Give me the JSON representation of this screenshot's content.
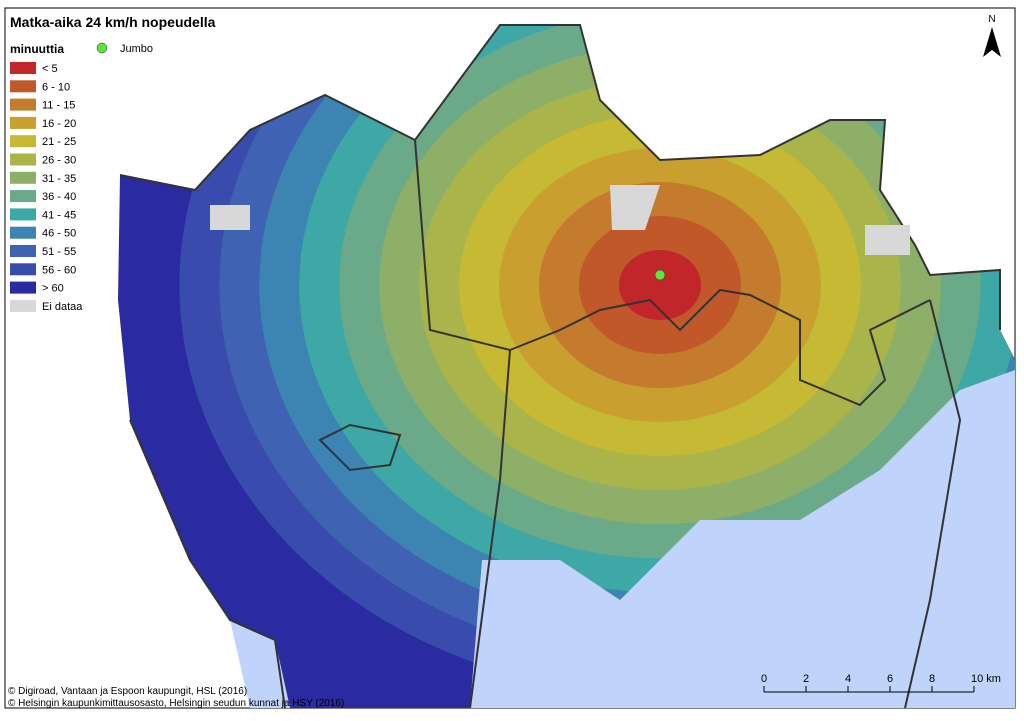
{
  "header": {
    "title": "Matka-aika 24 km/h nopeudella"
  },
  "legend": {
    "title": "minuuttia",
    "items": [
      {
        "label": "< 5",
        "color": "#c0262a"
      },
      {
        "label": "6 - 10",
        "color": "#c0582a"
      },
      {
        "label": "11 - 15",
        "color": "#c47b2d"
      },
      {
        "label": "16 - 20",
        "color": "#c9a02f"
      },
      {
        "label": "21 - 25",
        "color": "#c6b934"
      },
      {
        "label": "26 - 30",
        "color": "#a9b44b"
      },
      {
        "label": "31 - 35",
        "color": "#8daf68"
      },
      {
        "label": "36 - 40",
        "color": "#6aaa88"
      },
      {
        "label": "41 - 45",
        "color": "#3ea8a7"
      },
      {
        "label": "46 - 50",
        "color": "#3c84b1"
      },
      {
        "label": "51 - 55",
        "color": "#3f63b2"
      },
      {
        "label": "56 - 60",
        "color": "#3a4bae"
      },
      {
        "label": "> 60",
        "color": "#2a2ba0"
      },
      {
        "label": "Ei dataa",
        "color": "#d8d8d8"
      }
    ]
  },
  "marker": {
    "label": "Jumbo",
    "color": "#5ee43a"
  },
  "north": "N",
  "scale": {
    "labels": [
      "0",
      "2",
      "4",
      "6",
      "8",
      "10 km"
    ]
  },
  "credits": [
    "© Digiroad, Vantaan ja Espoon kaupungit, HSL (2016)",
    "© Helsingin kaupunkimittausosasto, Helsingin seudun kunnat ja HSY (2016)"
  ]
}
